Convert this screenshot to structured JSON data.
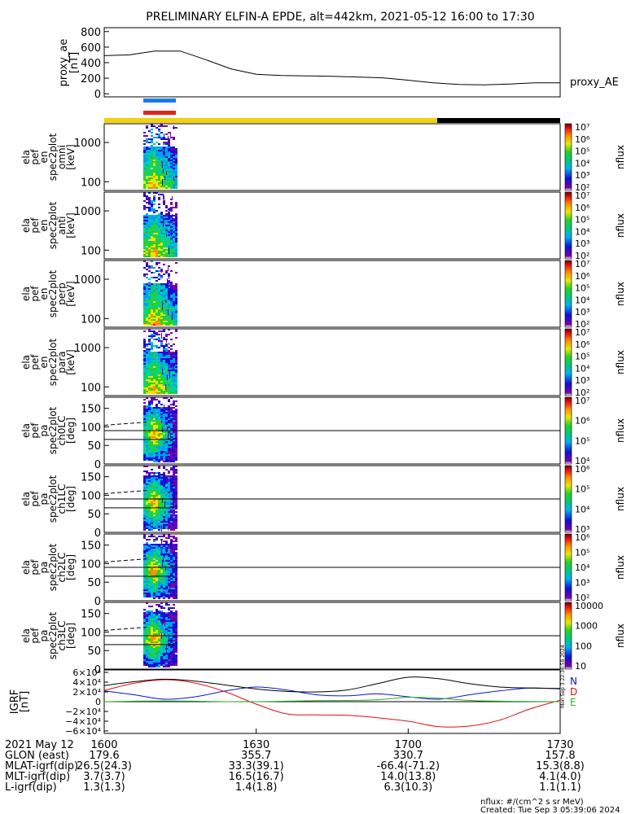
{
  "title": "PRELIMINARY ELFIN-A EPDE, alt=442km, 2021-05-12 16:00 to 17:30",
  "colors": {
    "sci_bar": "#f2d20a",
    "night_bar": "#000000",
    "bar_blue": "#1a7ae8",
    "bar_red": "#e0241c",
    "N": "#0a14d6",
    "D": "#e01010",
    "E": "#2ab02a",
    "proxy_line": "#000000"
  },
  "chart_data": [
    {
      "type": "line",
      "name": "proxy_ae",
      "ylabel": [
        "proxy_ae",
        "[nT]"
      ],
      "legend": "proxy_AE",
      "ylim": [
        -40,
        850
      ],
      "yticks": [
        "0",
        "200",
        "400",
        "600",
        "800"
      ],
      "x": [
        0,
        5,
        10,
        15,
        20,
        25,
        30,
        35,
        40,
        45,
        50,
        55,
        60,
        65,
        70,
        75,
        80,
        85,
        90
      ],
      "y": [
        490,
        500,
        550,
        550,
        440,
        320,
        250,
        235,
        230,
        225,
        215,
        205,
        175,
        140,
        120,
        115,
        125,
        140,
        140
      ]
    },
    {
      "type": "heatmap",
      "name": "omni",
      "ylabel": [
        "ela",
        "pef",
        "en",
        "spec2plot",
        "omni",
        "[keV]"
      ],
      "yscale": "log",
      "yticks": [
        "100",
        "1000"
      ],
      "cbar": {
        "ticks": [
          "10⁷",
          "10⁶",
          "10⁵",
          "10⁴",
          "10³",
          "10²"
        ],
        "label": "nflux"
      }
    },
    {
      "type": "heatmap",
      "name": "anti",
      "ylabel": [
        "ela",
        "pef",
        "en",
        "spec2plot",
        "anti",
        "[keV]"
      ],
      "yscale": "log",
      "yticks": [
        "100",
        "1000"
      ],
      "cbar": {
        "ticks": [
          "10⁷",
          "10⁶",
          "10⁵",
          "10⁴",
          "10³",
          "10²"
        ],
        "label": "nflux"
      }
    },
    {
      "type": "heatmap",
      "name": "perp",
      "ylabel": [
        "ela",
        "pef",
        "en",
        "spec2plot",
        "perp",
        "[keV]"
      ],
      "yscale": "log",
      "yticks": [
        "100",
        "1000"
      ],
      "cbar": {
        "ticks": [
          "10⁷",
          "10⁶",
          "10⁵",
          "10⁴",
          "10³",
          "10²"
        ],
        "label": "nflux"
      }
    },
    {
      "type": "heatmap",
      "name": "para",
      "ylabel": [
        "ela",
        "pef",
        "en",
        "spec2plot",
        "para",
        "[keV]"
      ],
      "yscale": "log",
      "yticks": [
        "100",
        "1000"
      ],
      "cbar": {
        "ticks": [
          "10⁷",
          "10⁶",
          "10⁵",
          "10⁴",
          "10³",
          "10²"
        ],
        "label": "nflux"
      }
    },
    {
      "type": "heatmap",
      "name": "ch0LC",
      "ylabel": [
        "ela",
        "pef",
        "pa",
        "spec2plot",
        "ch0LC",
        "[deg]"
      ],
      "ylim": [
        0,
        180
      ],
      "yticks": [
        "0",
        "50",
        "100",
        "150"
      ],
      "cbar": {
        "ticks": [
          "10⁷",
          "10⁶",
          "10⁵",
          "10⁴"
        ],
        "label": "nflux"
      }
    },
    {
      "type": "heatmap",
      "name": "ch1LC",
      "ylabel": [
        "ela",
        "pef",
        "pa",
        "spec2plot",
        "ch1LC",
        "[deg]"
      ],
      "ylim": [
        0,
        180
      ],
      "yticks": [
        "0",
        "50",
        "100",
        "150"
      ],
      "cbar": {
        "ticks": [
          "10⁶",
          "10⁵",
          "10⁴",
          "10³"
        ],
        "label": "nflux"
      }
    },
    {
      "type": "heatmap",
      "name": "ch2LC",
      "ylabel": [
        "ela",
        "pef",
        "pa",
        "spec2plot",
        "ch2LC",
        "[deg]"
      ],
      "ylim": [
        0,
        180
      ],
      "yticks": [
        "0",
        "50",
        "100",
        "150"
      ],
      "cbar": {
        "ticks": [
          "10⁶",
          "10⁵",
          "10⁴",
          "10³",
          "10²"
        ],
        "label": "nflux"
      }
    },
    {
      "type": "heatmap",
      "name": "ch3LC",
      "ylabel": [
        "ela",
        "pef",
        "pa",
        "spec2plot",
        "ch3LC",
        "[deg]"
      ],
      "ylim": [
        0,
        180
      ],
      "yticks": [
        "0",
        "50",
        "100",
        "150"
      ],
      "cbar": {
        "ticks": [
          "10000",
          "1000",
          "100",
          "10"
        ],
        "label": "nflux"
      }
    },
    {
      "type": "line",
      "name": "IGRF",
      "ylabel": [
        "IGRF",
        "[nT]"
      ],
      "ylim": [
        -65000,
        65000
      ],
      "yticks": [
        "6×10⁴",
        "4×10⁴",
        "2×10⁴",
        "0",
        "−2×10⁴",
        "−4×10⁴",
        "−6×10⁴"
      ],
      "legend": [
        "N",
        "D",
        "E"
      ],
      "side_note": "Mon Sep  3 22:36:58 2024",
      "series": [
        {
          "name": "N",
          "x": [
            0,
            6,
            12,
            18,
            24,
            30,
            36,
            42,
            48,
            54,
            60,
            66,
            72,
            78,
            84,
            90
          ],
          "y": [
            22000,
            14000,
            5000,
            10000,
            22000,
            30000,
            24000,
            14000,
            12000,
            16000,
            10000,
            5000,
            14000,
            22000,
            28000,
            26000
          ]
        },
        {
          "name": "D",
          "x": [
            0,
            6,
            12,
            18,
            24,
            30,
            36,
            42,
            48,
            54,
            60,
            66,
            72,
            78,
            84,
            90
          ],
          "y": [
            23000,
            38000,
            45000,
            38000,
            20000,
            -5000,
            -25000,
            -27000,
            -28000,
            -33000,
            -40000,
            -51000,
            -50000,
            -38000,
            -15000,
            3000
          ]
        },
        {
          "name": "E",
          "x": [
            0,
            6,
            12,
            18,
            24,
            30,
            36,
            42,
            48,
            54,
            60,
            66,
            72,
            78,
            84,
            90
          ],
          "y": [
            0,
            1000,
            1500,
            1000,
            0,
            0,
            1000,
            2000,
            2500,
            4000,
            9000,
            7000,
            2500,
            1000,
            500,
            0
          ]
        },
        {
          "name": "F",
          "x": [
            0,
            6,
            12,
            18,
            24,
            30,
            36,
            42,
            48,
            54,
            60,
            66,
            72,
            78,
            84,
            90
          ],
          "y": [
            33000,
            41000,
            46000,
            42000,
            34000,
            26000,
            21000,
            20000,
            24000,
            37000,
            50000,
            47000,
            37000,
            30000,
            28000,
            27000
          ]
        }
      ]
    }
  ],
  "time_axis": {
    "date": "2021 May 12",
    "labels": [
      "1600",
      "1630",
      "1700",
      "1730"
    ],
    "x": [
      0,
      30,
      60,
      90
    ]
  },
  "ephemeris": [
    {
      "label": "GLON (east)",
      "values": [
        "179.6",
        "355.7",
        "330.7",
        "157.8"
      ]
    },
    {
      "label": "MLAT-igrf(dip)",
      "values": [
        "26.5(24.3)",
        "33.3(39.1)",
        "-66.4(-71.2)",
        "15.3(8.8)"
      ]
    },
    {
      "label": "MLT-igrf(dip)",
      "values": [
        "3.7(3.7)",
        "16.5(16.7)",
        "14.0(13.8)",
        "4.1(4.0)"
      ]
    },
    {
      "label": "L-igrf(dip)",
      "values": [
        "1.3(1.3)",
        "1.4(1.8)",
        "6.3(10.3)",
        "1.1(1.1)"
      ]
    }
  ],
  "footer": {
    "units": "nflux: #/(cm^2 s sr MeV)",
    "created": "Created: Tue Sep  3 05:39:06 2024"
  }
}
